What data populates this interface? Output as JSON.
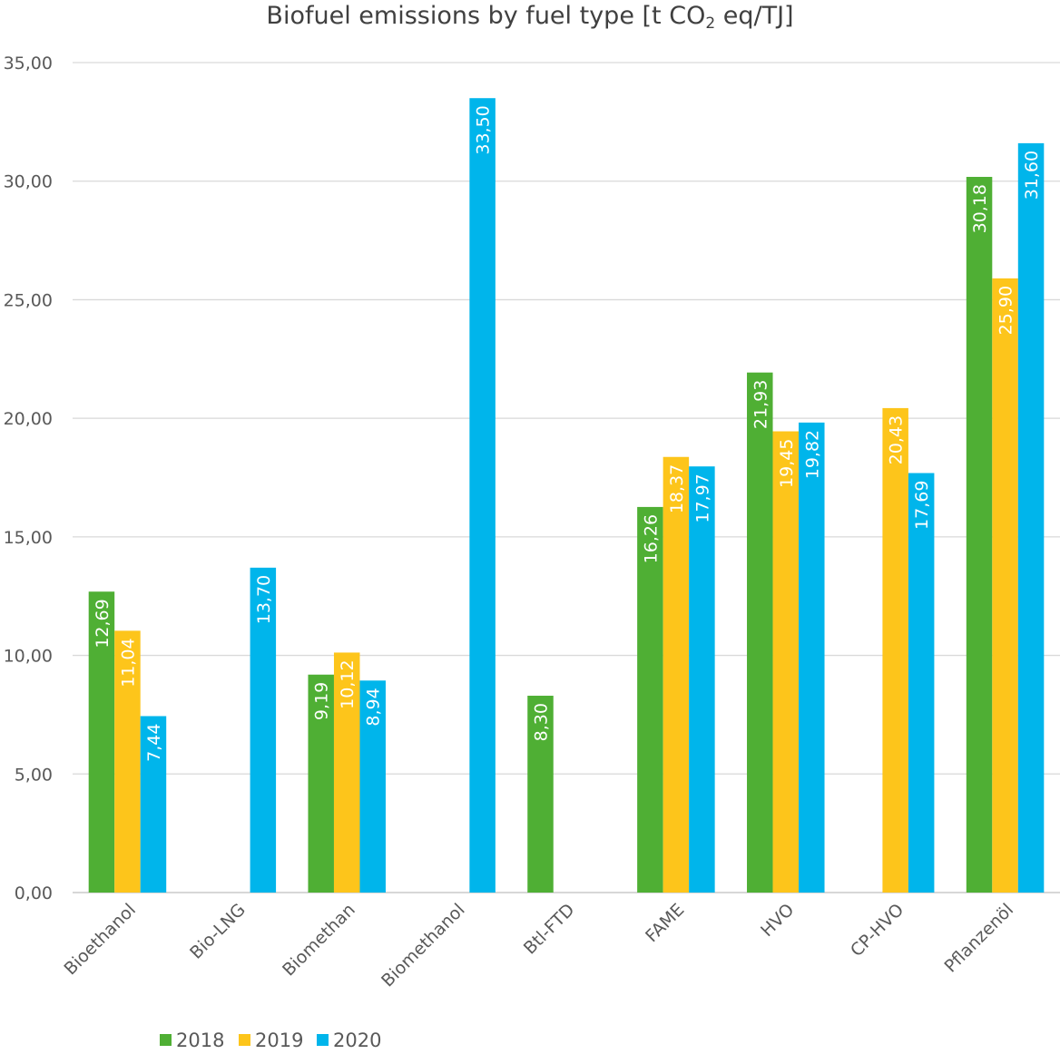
{
  "chart_data": {
    "type": "bar",
    "title": "Biofuel emissions by fuel type [t CO",
    "title_sub": "2",
    "title_suffix": " eq/TJ]",
    "categories": [
      "Bioethanol",
      "Bio-LNG",
      "Biomethan",
      "Biomethanol",
      "Btl-FTD",
      "FAME",
      "HVO",
      "CP-HVO",
      "Pflanzenöl"
    ],
    "series": [
      {
        "name": "2018",
        "color": "#4faf34",
        "values": [
          12.69,
          null,
          9.19,
          null,
          8.3,
          16.26,
          21.93,
          null,
          30.18
        ],
        "labels": [
          "12,69",
          null,
          "9,19",
          null,
          "8,30",
          "16,26",
          "21,93",
          null,
          "30,18"
        ]
      },
      {
        "name": "2019",
        "color": "#fdc51b",
        "values": [
          11.04,
          null,
          10.12,
          null,
          null,
          18.37,
          19.45,
          20.43,
          25.9
        ],
        "labels": [
          "11,04",
          null,
          "10,12",
          null,
          null,
          "18,37",
          "19,45",
          "20,43",
          "25,90"
        ]
      },
      {
        "name": "2020",
        "color": "#00b5eb",
        "values": [
          7.44,
          13.7,
          8.94,
          33.5,
          null,
          17.97,
          19.82,
          17.69,
          31.6
        ],
        "labels": [
          "7,44",
          "13,70",
          "8,94",
          "33,50",
          null,
          "17,97",
          "19,82",
          "17,69",
          "31,60"
        ]
      }
    ],
    "ylim": [
      0,
      35
    ],
    "yticks": [
      0,
      5,
      10,
      15,
      20,
      25,
      30,
      35
    ],
    "ytick_labels": [
      "0,00",
      "5,00",
      "10,00",
      "15,00",
      "20,00",
      "25,00",
      "30,00",
      "35,00"
    ],
    "grid": true,
    "legend_position": "bottom-left"
  }
}
